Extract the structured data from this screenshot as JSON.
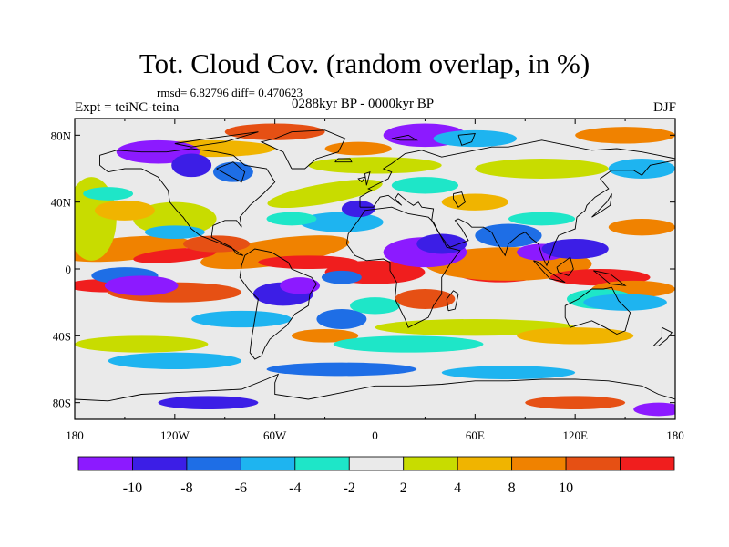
{
  "header": {
    "title": "Tot. Cloud Cov. (random overlap, in %)",
    "rmsd_line": "rmsd= 6.82796 diff= 0.470623",
    "experiment": "Expt = teiNC-teina",
    "period": "0288kyr BP - 0000kyr BP",
    "season": "DJF"
  },
  "map": {
    "x_ticks": [
      "180",
      "120W",
      "60W",
      "0",
      "60E",
      "120E",
      "180"
    ],
    "y_ticks": [
      "80N",
      "40N",
      "0",
      "40S",
      "80S"
    ],
    "y_tick_values": [
      80,
      40,
      0,
      -40,
      -80
    ],
    "lon_range": [
      -180,
      180
    ],
    "lat_range": [
      -90,
      90
    ]
  },
  "colorbar": {
    "labels": [
      "-10",
      "-8",
      "-6",
      "-4",
      "-2",
      "2",
      "4",
      "8",
      "10"
    ],
    "colors": [
      "#8c1aff",
      "#3c1ee6",
      "#1e6ee6",
      "#1eb4f0",
      "#1ee6c8",
      "#eaeaea",
      "#c8dc00",
      "#f0b400",
      "#f08200",
      "#e65014",
      "#f01e1e"
    ]
  }
}
